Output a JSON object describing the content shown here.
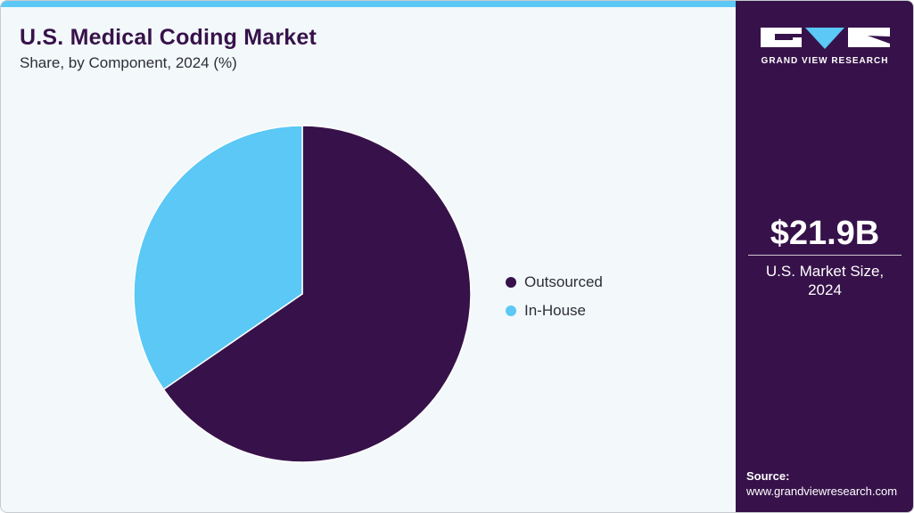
{
  "header": {
    "title": "U.S. Medical Coding Market",
    "subtitle": "Share, by Component, 2024 (%)"
  },
  "brand": {
    "name": "GRAND VIEW RESEARCH",
    "colors": {
      "primary": "#37124a",
      "accent": "#5bc8f5",
      "background": "#f3f8fb"
    }
  },
  "kpi": {
    "value": "$21.9B",
    "label_line1": "U.S. Market Size,",
    "label_line2": "2024"
  },
  "source": {
    "label": "Source:",
    "url": "www.grandviewresearch.com"
  },
  "legend": [
    {
      "label": "Outsourced",
      "color": "#37124a"
    },
    {
      "label": "In-House",
      "color": "#5bc8f5"
    }
  ],
  "chart_data": {
    "type": "pie",
    "title": "U.S. Medical Coding Market",
    "subtitle": "Share, by Component, 2024 (%)",
    "categories": [
      "Outsourced",
      "In-House"
    ],
    "values": [
      65.4,
      34.6
    ],
    "colors": [
      "#37124a",
      "#5bc8f5"
    ],
    "start_angle": "12 o'clock, clockwise",
    "legend_position": "right",
    "data_labels": false
  }
}
